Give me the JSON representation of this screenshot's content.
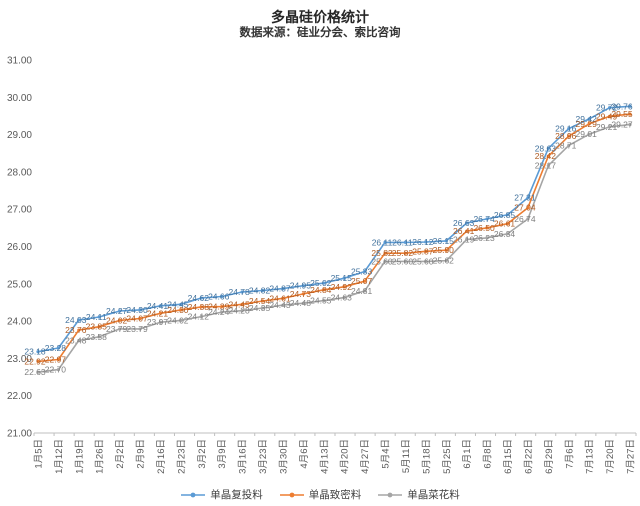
{
  "header": {
    "title": "多晶硅价格统计",
    "subtitle": "数据来源：硅业分会、索比咨询"
  },
  "chart_data": {
    "type": "line",
    "title": "多晶硅价格统计",
    "subtitle": "数据来源：硅业分会、索比咨询",
    "xlabel": "",
    "ylabel": "",
    "ylim": [
      21,
      31
    ],
    "y_tick_step": 1,
    "y_ticks": [
      "21.00",
      "22.00",
      "23.00",
      "24.00",
      "25.00",
      "26.00",
      "27.00",
      "28.00",
      "29.00",
      "30.00",
      "31.00"
    ],
    "grid": false,
    "data_labels": true,
    "legend_position": "bottom",
    "axis_color": "#BFBFBF",
    "tick_label_color": "#595959",
    "x": [
      "1月5日",
      "1月12日",
      "1月19日",
      "1月26日",
      "2月2日",
      "2月9日",
      "2月16日",
      "2月23日",
      "3月2日",
      "3月9日",
      "3月16日",
      "3月23日",
      "3月30日",
      "4月6日",
      "4月13日",
      "4月20日",
      "4月27日",
      "5月4日",
      "5月11日",
      "5月18日",
      "5月25日",
      "6月1日",
      "6月8日",
      "6月15日",
      "6月22日",
      "6月29日",
      "7月6日",
      "7月13日",
      "7月20日",
      "7月27日"
    ],
    "series": [
      {
        "name": "单晶复投料",
        "color": "#5B9BD5",
        "label_color": "#41719C",
        "values": [
          23.18,
          23.28,
          24.03,
          24.11,
          24.27,
          24.3,
          24.41,
          24.45,
          24.62,
          24.66,
          24.78,
          24.82,
          24.87,
          24.95,
          25.02,
          25.15,
          25.33,
          26.11,
          26.11,
          26.12,
          26.15,
          26.63,
          26.74,
          26.85,
          27.31,
          28.63,
          29.16,
          29.42,
          29.72,
          29.76
        ]
      },
      {
        "name": "单晶致密料",
        "color": "#ED7D31",
        "label_color": "#AE5A21",
        "values": [
          22.92,
          22.97,
          23.76,
          23.85,
          24.02,
          24.07,
          24.21,
          24.3,
          24.38,
          24.39,
          24.45,
          24.54,
          24.61,
          24.73,
          24.84,
          24.92,
          25.07,
          25.82,
          25.82,
          25.87,
          25.9,
          26.41,
          26.5,
          26.61,
          27.04,
          28.42,
          28.96,
          29.29,
          29.49,
          29.55
        ]
      },
      {
        "name": "单晶菜花料",
        "color": "#A5A5A5",
        "label_color": "#7F7F7F",
        "values": [
          22.63,
          22.7,
          23.48,
          23.58,
          23.79,
          23.79,
          23.97,
          24.02,
          24.12,
          24.24,
          24.28,
          24.35,
          24.43,
          24.48,
          24.55,
          24.63,
          24.81,
          25.6,
          25.6,
          25.6,
          25.62,
          26.19,
          26.23,
          26.34,
          26.74,
          28.17,
          28.71,
          29.01,
          29.21,
          29.27
        ]
      }
    ]
  }
}
